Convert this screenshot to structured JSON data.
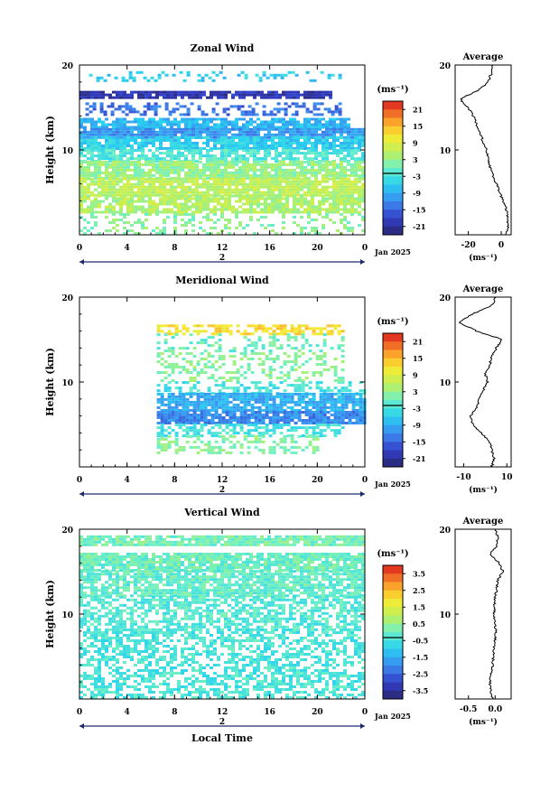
{
  "chart_data": [
    {
      "type": "heatmap",
      "title": "Zonal Wind",
      "ylabel": "Height (km)",
      "xlabel": "",
      "x_ticks": [
        "0",
        "4",
        "8",
        "12",
        "16",
        "20",
        "0"
      ],
      "y_ticks": [
        "10",
        "20"
      ],
      "xlim": [
        0,
        24
      ],
      "ylim": [
        0,
        20
      ],
      "date_label": "Jan 2025",
      "day_label": "2",
      "colorbar": {
        "unit": "(ms⁻¹)",
        "ticks": [
          "21",
          "15",
          "9",
          "3",
          "-3",
          "-9",
          "-15",
          "-21"
        ],
        "range": [
          -24,
          24
        ]
      },
      "bands": [
        {
          "y0": 18.0,
          "y1": 19.2,
          "value": -6,
          "x0": 0.5,
          "x1": 22,
          "density": 0.3
        },
        {
          "y0": 16.0,
          "y1": 16.8,
          "value": -20,
          "x0": 0.0,
          "x1": 21,
          "density": 0.85
        },
        {
          "y0": 14.0,
          "y1": 15.5,
          "value": -14,
          "x0": 0.5,
          "x1": 22,
          "density": 0.4
        },
        {
          "y0": 12.5,
          "y1": 13.5,
          "value": -8,
          "x0": 0.0,
          "x1": 22.5,
          "density": 0.8
        },
        {
          "y0": 11.3,
          "y1": 12.5,
          "value": -11,
          "x0": 0.0,
          "x1": 24,
          "density": 0.9
        },
        {
          "y0": 10.0,
          "y1": 11.3,
          "value": -6,
          "x0": 0.0,
          "x1": 24,
          "density": 0.85
        },
        {
          "y0": 8.5,
          "y1": 10.0,
          "value": -2,
          "x0": 0.0,
          "x1": 24,
          "density": 0.75
        },
        {
          "y0": 6.5,
          "y1": 8.5,
          "value": 3,
          "x0": 0.0,
          "x1": 24,
          "density": 0.85
        },
        {
          "y0": 4.5,
          "y1": 6.5,
          "value": 6,
          "x0": 0.0,
          "x1": 24,
          "density": 0.9
        },
        {
          "y0": 2.5,
          "y1": 4.5,
          "value": 5,
          "x0": 0.0,
          "x1": 24,
          "density": 0.75
        },
        {
          "y0": 0.0,
          "y1": 2.5,
          "value": 2,
          "x0": 0.0,
          "x1": 24,
          "density": 0.3
        }
      ],
      "profile": {
        "xlim": [
          -28,
          6
        ],
        "x_ticks": [
          {
            "v": -20,
            "t": "-20"
          },
          {
            "v": 0,
            "t": "0"
          }
        ],
        "y_ticks": [
          "10",
          "20"
        ],
        "title": "Average",
        "xunit": "(ms⁻¹)",
        "heights": [
          0,
          1,
          2,
          3,
          4,
          5,
          6,
          7,
          8,
          9,
          10,
          11,
          12,
          13,
          14,
          15,
          16,
          17,
          18,
          19,
          20
        ],
        "values": [
          3,
          4,
          4,
          3,
          1,
          -1,
          -3,
          -5,
          -7,
          -8,
          -9,
          -11,
          -13,
          -15,
          -17,
          -20,
          -25,
          -14,
          -8,
          -6,
          -5
        ]
      }
    },
    {
      "type": "heatmap",
      "title": "Meridional Wind",
      "ylabel": "Height (km)",
      "xlabel": "",
      "x_ticks": [
        "0",
        "4",
        "8",
        "12",
        "16",
        "20",
        "0"
      ],
      "y_ticks": [
        "10",
        "20"
      ],
      "xlim": [
        0,
        24
      ],
      "ylim": [
        0,
        20
      ],
      "date_label": "Jan 2025",
      "day_label": "2",
      "colorbar": {
        "unit": "(ms⁻¹)",
        "ticks": [
          "21",
          "15",
          "9",
          "3",
          "-3",
          "-9",
          "-15",
          "-21"
        ],
        "range": [
          -24,
          24
        ]
      },
      "bands": [
        {
          "y0": 15.5,
          "y1": 16.5,
          "value": 12,
          "x0": 6.5,
          "x1": 22,
          "density": 0.6
        },
        {
          "y0": 13.5,
          "y1": 15.5,
          "value": 0,
          "x0": 6.5,
          "x1": 22,
          "density": 0.25
        },
        {
          "y0": 10.0,
          "y1": 13.5,
          "value": 2,
          "x0": 6.5,
          "x1": 22,
          "density": 0.35
        },
        {
          "y0": 8.5,
          "y1": 10.0,
          "value": -3,
          "x0": 6.5,
          "x1": 24,
          "density": 0.45
        },
        {
          "y0": 6.5,
          "y1": 8.5,
          "value": -9,
          "x0": 6.5,
          "x1": 24,
          "density": 0.85
        },
        {
          "y0": 5.0,
          "y1": 6.5,
          "value": -12,
          "x0": 6.5,
          "x1": 24,
          "density": 0.9
        },
        {
          "y0": 3.5,
          "y1": 5.0,
          "value": -3,
          "x0": 6.5,
          "x1": 22,
          "density": 0.55
        },
        {
          "y0": 1.5,
          "y1": 3.5,
          "value": 2,
          "x0": 6.5,
          "x1": 20,
          "density": 0.45
        }
      ],
      "profile": {
        "xlim": [
          -14,
          12
        ],
        "x_ticks": [
          {
            "v": -10,
            "t": "-10"
          },
          {
            "v": 10,
            "t": "10"
          }
        ],
        "y_ticks": [
          "10",
          "20"
        ],
        "title": "Average",
        "xunit": "(ms⁻¹)",
        "heights": [
          0,
          1,
          2,
          3,
          4,
          5,
          6,
          7,
          8,
          9,
          10,
          11,
          12,
          13,
          14,
          15,
          16,
          17,
          18,
          19,
          20
        ],
        "values": [
          3,
          4,
          3,
          2,
          -2,
          -6,
          -7,
          -4,
          -3,
          -1,
          1,
          0,
          2,
          3,
          5,
          8,
          -4,
          -12,
          -6,
          3,
          5
        ]
      }
    },
    {
      "type": "heatmap",
      "title": "Vertical Wind",
      "ylabel": "Height (km)",
      "xlabel": "Local Time",
      "x_ticks": [
        "0",
        "4",
        "8",
        "12",
        "16",
        "20",
        "0"
      ],
      "y_ticks": [
        "10",
        "20"
      ],
      "xlim": [
        0,
        24
      ],
      "ylim": [
        0,
        20
      ],
      "date_label": "Jan 2025",
      "day_label": "2",
      "colorbar": {
        "unit": "(ms⁻¹)",
        "ticks": [
          "3.5",
          "2.5",
          "1.5",
          "0.5",
          "-0.5",
          "-1.5",
          "-2.5",
          "-3.5"
        ],
        "range": [
          -4,
          4
        ]
      },
      "bands": [
        {
          "y0": 18.0,
          "y1": 19.0,
          "value": 0.1,
          "x0": 0.0,
          "x1": 24,
          "density": 0.9
        },
        {
          "y0": 15.0,
          "y1": 17.0,
          "value": 0.0,
          "x0": 0.0,
          "x1": 24,
          "density": 0.85
        },
        {
          "y0": 12.0,
          "y1": 15.0,
          "value": -0.1,
          "x0": 0.0,
          "x1": 24,
          "density": 0.8
        },
        {
          "y0": 8.0,
          "y1": 12.0,
          "value": -0.3,
          "x0": 0.0,
          "x1": 24,
          "density": 0.6
        },
        {
          "y0": 0.0,
          "y1": 8.0,
          "value": -0.4,
          "x0": 0.0,
          "x1": 24,
          "density": 0.55
        }
      ],
      "profile": {
        "xlim": [
          -0.75,
          0.3
        ],
        "x_ticks": [
          {
            "v": -0.5,
            "t": "-0.5"
          },
          {
            "v": 0.0,
            "t": "0.0"
          }
        ],
        "y_ticks": [
          "10",
          "20"
        ],
        "title": "Average",
        "xunit": "(ms⁻¹)",
        "heights": [
          0,
          1,
          2,
          3,
          4,
          5,
          6,
          7,
          8,
          9,
          10,
          11,
          12,
          13,
          14,
          15,
          16,
          17,
          18,
          19,
          20
        ],
        "values": [
          -0.05,
          -0.08,
          -0.1,
          -0.08,
          -0.05,
          -0.03,
          -0.02,
          0.0,
          0.01,
          0.0,
          -0.02,
          -0.01,
          0.0,
          0.03,
          0.05,
          0.15,
          0.08,
          -0.1,
          0.02,
          0.05,
          0.0
        ]
      }
    }
  ]
}
